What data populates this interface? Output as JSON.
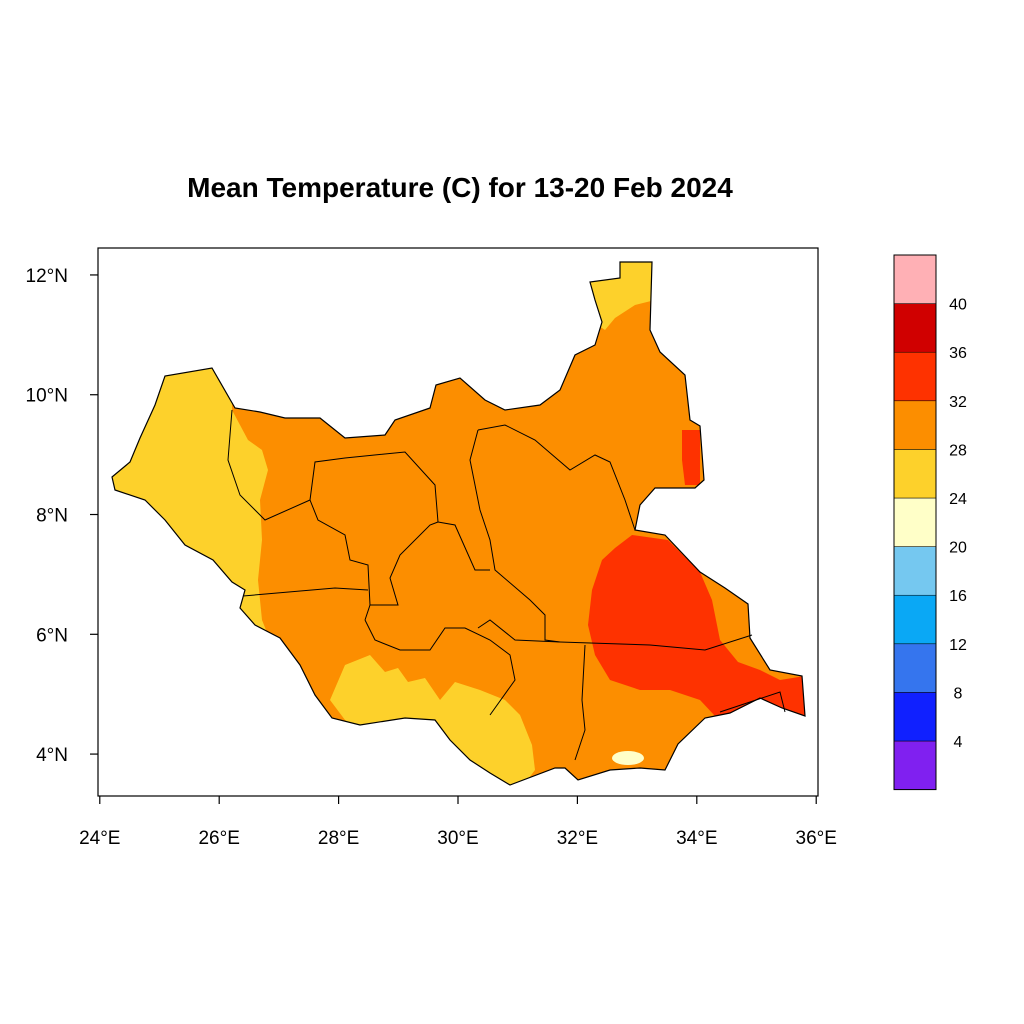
{
  "title": "Mean Temperature (C) for 13-20 Feb 2024",
  "map": {
    "x_ticks": [
      {
        "lon": 24,
        "label": "24°E"
      },
      {
        "lon": 26,
        "label": "26°E"
      },
      {
        "lon": 28,
        "label": "28°E"
      },
      {
        "lon": 30,
        "label": "30°E"
      },
      {
        "lon": 32,
        "label": "32°E"
      },
      {
        "lon": 34,
        "label": "34°E"
      },
      {
        "lon": 36,
        "label": "36°E"
      }
    ],
    "y_ticks": [
      {
        "lat": 12,
        "label": "12°N"
      },
      {
        "lat": 10,
        "label": "10°N"
      },
      {
        "lat": 8,
        "label": "8°N"
      },
      {
        "lat": 6,
        "label": "6°N"
      },
      {
        "lat": 4,
        "label": "4°N"
      }
    ],
    "lon_range": [
      23.97,
      36.03
    ],
    "lat_range": [
      3.3,
      12.45
    ]
  },
  "legend": {
    "colors": [
      "#8020f0",
      "#1020ff",
      "#3575ee",
      "#0aa8f5",
      "#75c8f0",
      "#ffffc8",
      "#fdd12b",
      "#fc8e00",
      "#fe3200",
      "#d00000",
      "#ffb0b5"
    ],
    "labels": [
      "4",
      "8",
      "12",
      "16",
      "20",
      "24",
      "28",
      "32",
      "36",
      "40"
    ]
  },
  "palette": {
    "t24_28": "#fdd12b",
    "t28_32": "#fc8e00",
    "t32_36": "#fe3200",
    "t20_24": "#ffffc8"
  }
}
